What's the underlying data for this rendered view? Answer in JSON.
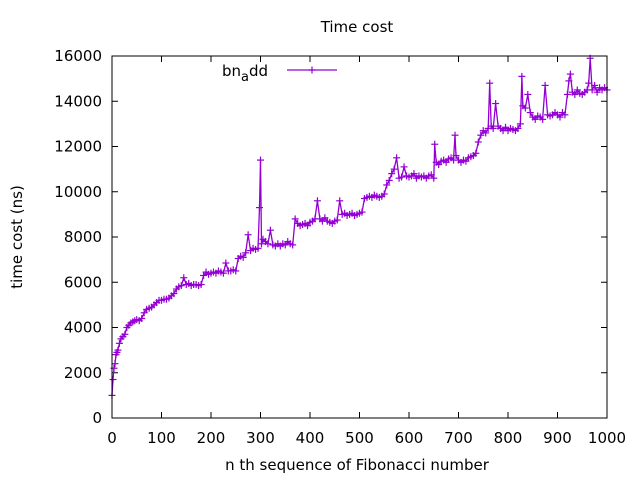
{
  "chart_data": {
    "type": "line",
    "title": "Time cost",
    "xlabel": "n th sequence of Fibonacci number",
    "ylabel": "time cost (ns)",
    "xlim": [
      0,
      1000
    ],
    "ylim": [
      0,
      16000
    ],
    "xticks": [
      0,
      100,
      200,
      300,
      400,
      500,
      600,
      700,
      800,
      900,
      1000
    ],
    "yticks": [
      0,
      2000,
      4000,
      6000,
      8000,
      10000,
      12000,
      14000,
      16000
    ],
    "grid": false,
    "legend_position": "top-center",
    "series": [
      {
        "name_base": "bn",
        "name_sub": "a",
        "name_rest": "dd",
        "color": "#9400d3",
        "marker": "plus",
        "points": [
          [
            0,
            1000
          ],
          [
            2,
            1700
          ],
          [
            4,
            2200
          ],
          [
            6,
            2400
          ],
          [
            8,
            2800
          ],
          [
            10,
            2900
          ],
          [
            12,
            3000
          ],
          [
            15,
            3300
          ],
          [
            18,
            3500
          ],
          [
            22,
            3600
          ],
          [
            26,
            3700
          ],
          [
            30,
            4000
          ],
          [
            34,
            4100
          ],
          [
            38,
            4200
          ],
          [
            42,
            4250
          ],
          [
            46,
            4300
          ],
          [
            50,
            4350
          ],
          [
            55,
            4300
          ],
          [
            60,
            4400
          ],
          [
            65,
            4650
          ],
          [
            70,
            4800
          ],
          [
            75,
            4850
          ],
          [
            80,
            4900
          ],
          [
            85,
            5000
          ],
          [
            90,
            5100
          ],
          [
            95,
            5200
          ],
          [
            100,
            5200
          ],
          [
            105,
            5250
          ],
          [
            110,
            5250
          ],
          [
            115,
            5300
          ],
          [
            120,
            5400
          ],
          [
            125,
            5500
          ],
          [
            130,
            5700
          ],
          [
            135,
            5800
          ],
          [
            140,
            5850
          ],
          [
            145,
            6200
          ],
          [
            150,
            5900
          ],
          [
            155,
            5950
          ],
          [
            160,
            5850
          ],
          [
            165,
            5900
          ],
          [
            170,
            5900
          ],
          [
            175,
            5850
          ],
          [
            180,
            5900
          ],
          [
            185,
            6300
          ],
          [
            190,
            6450
          ],
          [
            195,
            6350
          ],
          [
            200,
            6400
          ],
          [
            205,
            6450
          ],
          [
            210,
            6400
          ],
          [
            215,
            6500
          ],
          [
            220,
            6450
          ],
          [
            225,
            6400
          ],
          [
            230,
            6850
          ],
          [
            235,
            6500
          ],
          [
            240,
            6500
          ],
          [
            245,
            6550
          ],
          [
            250,
            6500
          ],
          [
            255,
            7050
          ],
          [
            260,
            7150
          ],
          [
            265,
            7100
          ],
          [
            270,
            7300
          ],
          [
            275,
            8100
          ],
          [
            280,
            7400
          ],
          [
            285,
            7500
          ],
          [
            290,
            7450
          ],
          [
            295,
            7500
          ],
          [
            298,
            9300
          ],
          [
            300,
            11400
          ],
          [
            302,
            7700
          ],
          [
            305,
            7900
          ],
          [
            310,
            7800
          ],
          [
            315,
            7700
          ],
          [
            320,
            8300
          ],
          [
            325,
            7650
          ],
          [
            330,
            7600
          ],
          [
            335,
            7700
          ],
          [
            340,
            7600
          ],
          [
            345,
            7700
          ],
          [
            350,
            7650
          ],
          [
            355,
            7800
          ],
          [
            360,
            7700
          ],
          [
            365,
            7650
          ],
          [
            370,
            8800
          ],
          [
            375,
            8600
          ],
          [
            380,
            8500
          ],
          [
            385,
            8550
          ],
          [
            390,
            8600
          ],
          [
            395,
            8500
          ],
          [
            400,
            8650
          ],
          [
            405,
            8700
          ],
          [
            410,
            8800
          ],
          [
            415,
            9600
          ],
          [
            420,
            8800
          ],
          [
            425,
            8700
          ],
          [
            430,
            8850
          ],
          [
            435,
            8700
          ],
          [
            440,
            8650
          ],
          [
            445,
            8600
          ],
          [
            450,
            8700
          ],
          [
            455,
            8750
          ],
          [
            460,
            9600
          ],
          [
            465,
            9000
          ],
          [
            470,
            9050
          ],
          [
            475,
            8950
          ],
          [
            480,
            9000
          ],
          [
            485,
            9050
          ],
          [
            490,
            8950
          ],
          [
            495,
            9000
          ],
          [
            500,
            9050
          ],
          [
            505,
            9100
          ],
          [
            510,
            9700
          ],
          [
            515,
            9750
          ],
          [
            520,
            9800
          ],
          [
            525,
            9750
          ],
          [
            530,
            9850
          ],
          [
            535,
            9800
          ],
          [
            540,
            9750
          ],
          [
            545,
            9800
          ],
          [
            550,
            9900
          ],
          [
            555,
            10300
          ],
          [
            560,
            10500
          ],
          [
            565,
            10800
          ],
          [
            570,
            11000
          ],
          [
            575,
            11500
          ],
          [
            580,
            10600
          ],
          [
            585,
            10650
          ],
          [
            590,
            11100
          ],
          [
            595,
            10700
          ],
          [
            600,
            10650
          ],
          [
            605,
            10700
          ],
          [
            610,
            10800
          ],
          [
            615,
            10600
          ],
          [
            620,
            10700
          ],
          [
            625,
            10650
          ],
          [
            630,
            10700
          ],
          [
            635,
            10600
          ],
          [
            640,
            10700
          ],
          [
            645,
            10750
          ],
          [
            650,
            10600
          ],
          [
            652,
            12100
          ],
          [
            655,
            11300
          ],
          [
            660,
            11200
          ],
          [
            665,
            11350
          ],
          [
            670,
            11400
          ],
          [
            675,
            11300
          ],
          [
            680,
            11450
          ],
          [
            685,
            11500
          ],
          [
            690,
            11400
          ],
          [
            693,
            12500
          ],
          [
            695,
            11600
          ],
          [
            700,
            11400
          ],
          [
            705,
            11300
          ],
          [
            710,
            11400
          ],
          [
            715,
            11350
          ],
          [
            720,
            11500
          ],
          [
            725,
            11550
          ],
          [
            730,
            11600
          ],
          [
            735,
            11700
          ],
          [
            740,
            12200
          ],
          [
            745,
            12500
          ],
          [
            750,
            12700
          ],
          [
            755,
            12600
          ],
          [
            760,
            12800
          ],
          [
            763,
            14800
          ],
          [
            766,
            12900
          ],
          [
            770,
            12800
          ],
          [
            775,
            13900
          ],
          [
            780,
            12900
          ],
          [
            785,
            12800
          ],
          [
            790,
            12700
          ],
          [
            795,
            12850
          ],
          [
            800,
            12700
          ],
          [
            805,
            12800
          ],
          [
            810,
            12750
          ],
          [
            815,
            12700
          ],
          [
            820,
            12800
          ],
          [
            825,
            13000
          ],
          [
            828,
            15100
          ],
          [
            830,
            13800
          ],
          [
            835,
            13700
          ],
          [
            840,
            14300
          ],
          [
            845,
            13500
          ],
          [
            850,
            13300
          ],
          [
            855,
            13200
          ],
          [
            860,
            13350
          ],
          [
            865,
            13300
          ],
          [
            870,
            13200
          ],
          [
            875,
            14700
          ],
          [
            880,
            13400
          ],
          [
            885,
            13350
          ],
          [
            890,
            13400
          ],
          [
            895,
            13500
          ],
          [
            900,
            13400
          ],
          [
            905,
            13300
          ],
          [
            910,
            13500
          ],
          [
            915,
            13400
          ],
          [
            920,
            14300
          ],
          [
            923,
            14900
          ],
          [
            926,
            15200
          ],
          [
            930,
            14400
          ],
          [
            935,
            14300
          ],
          [
            940,
            14500
          ],
          [
            945,
            14350
          ],
          [
            950,
            14300
          ],
          [
            955,
            14400
          ],
          [
            960,
            14500
          ],
          [
            963,
            14800
          ],
          [
            966,
            15900
          ],
          [
            970,
            14500
          ],
          [
            975,
            14700
          ],
          [
            980,
            14400
          ],
          [
            985,
            14600
          ],
          [
            990,
            14500
          ],
          [
            995,
            14600
          ],
          [
            1000,
            14500
          ]
        ]
      }
    ]
  }
}
